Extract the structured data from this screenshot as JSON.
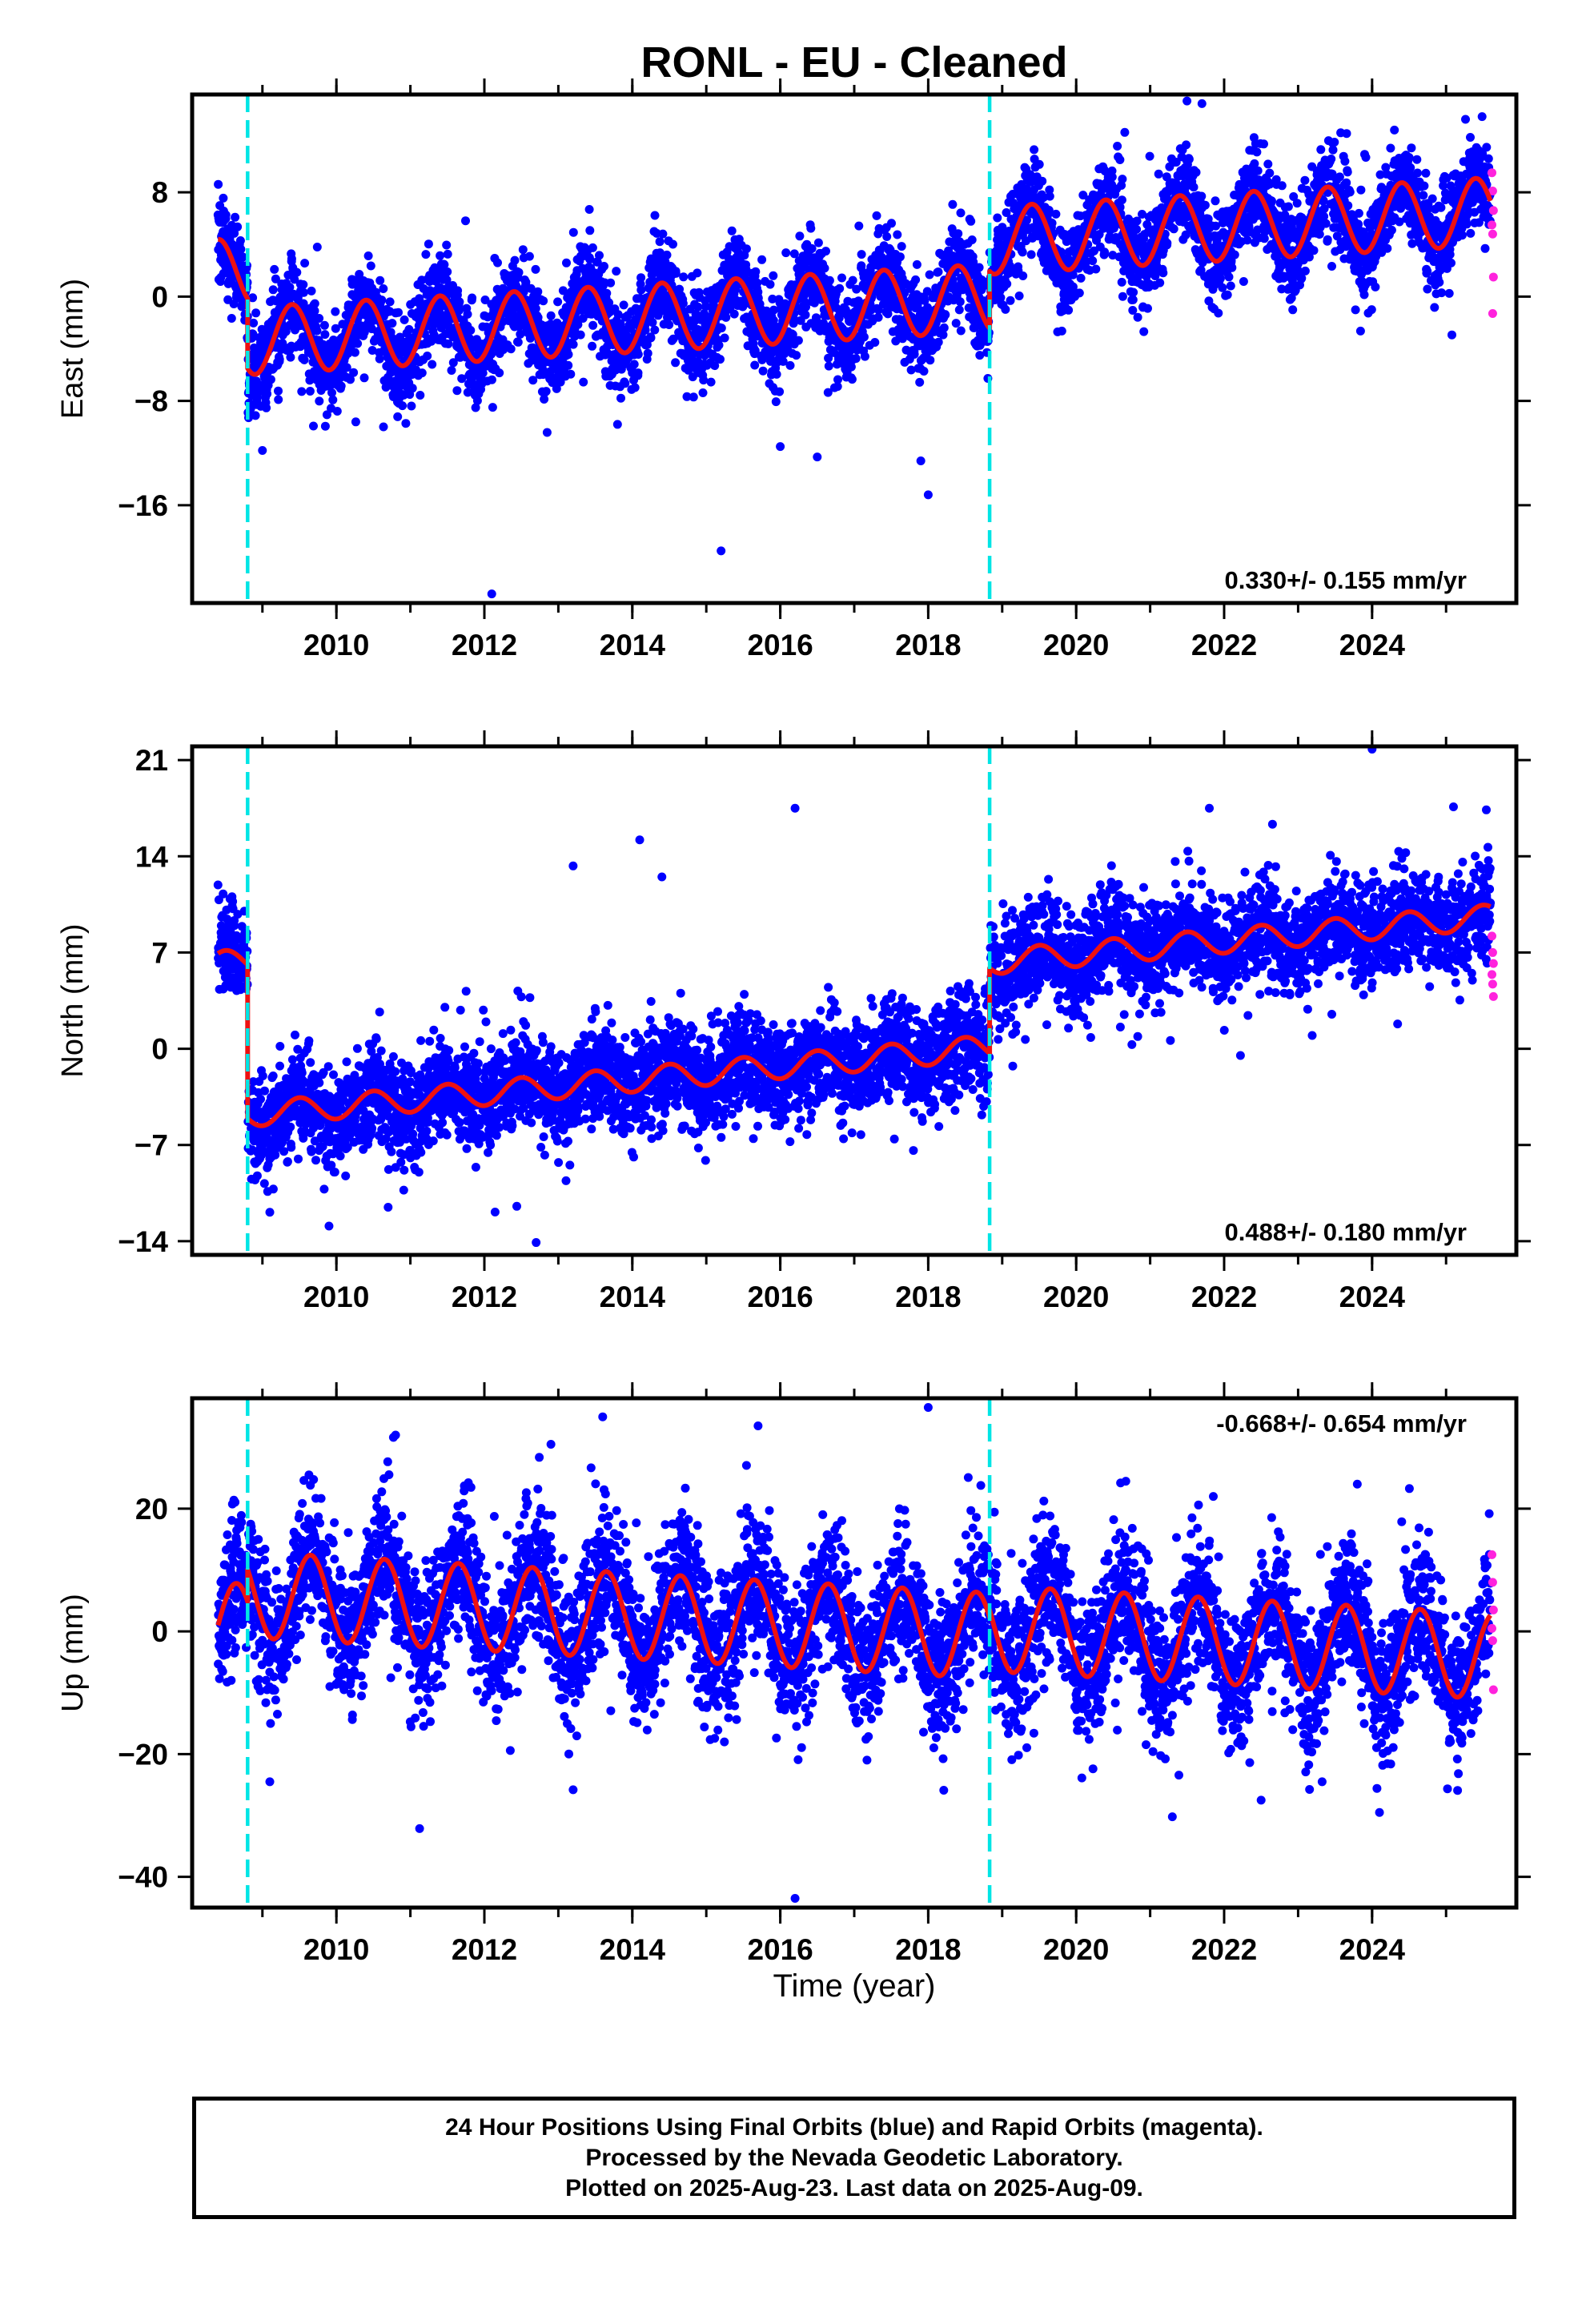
{
  "colors": {
    "final": "#0000ff",
    "rapid": "#ff22dd",
    "model": "#ee1111",
    "event": "#00e5e5",
    "frame": "#000000"
  },
  "info": {
    "line1": "24 Hour Positions Using Final Orbits (blue) and Rapid Orbits (magenta).",
    "line2": "Processed by the Nevada Geodetic Laboratory.",
    "line3": "Plotted on 2025-Aug-23. Last data on 2025-Aug-09."
  },
  "chart_data": [
    {
      "type": "scatter",
      "title": "RONL  - EU - Cleaned",
      "ylabel": "East (mm)",
      "xlabel": "",
      "xlim": [
        2008.05,
        2025.95
      ],
      "ylim": [
        -23.5,
        15.5
      ],
      "xticks": [
        2010,
        2012,
        2014,
        2016,
        2018,
        2020,
        2022,
        2024
      ],
      "yticks": [
        8,
        0,
        -8,
        -16
      ],
      "grid": false,
      "event_lines": [
        2008.8,
        2018.83
      ],
      "rate_label": "0.330+/- 0.155 mm/yr",
      "rate_position": "bottom-right",
      "data_start": 2008.4,
      "data_end": 2025.6,
      "model": {
        "trend_mm_per_yr": 0.33,
        "segment_offsets": [
          {
            "from": 2008.4,
            "to": 2008.8,
            "value_at_start": 1.8
          },
          {
            "from": 2008.8,
            "to": 2018.83,
            "value_at_start": -3.4
          },
          {
            "from": 2018.83,
            "to": 2025.6,
            "value_at_start": 4.3
          }
        ],
        "annual_amplitude": 2.6,
        "annual_peak": 2008.4
      },
      "scatter_spread": 1.7,
      "outliers": [
        [
          2012.1,
          -22.8
        ],
        [
          2015.2,
          -19.5
        ],
        [
          2018.0,
          -15.2
        ],
        [
          2017.9,
          -12.6
        ],
        [
          2009.0,
          -11.8
        ],
        [
          2016.0,
          -11.5
        ],
        [
          2016.5,
          -12.3
        ],
        [
          2021.7,
          14.8
        ],
        [
          2013.8,
          -9.8
        ]
      ],
      "rapid_points": [
        [
          2025.62,
          9.5
        ],
        [
          2025.63,
          8.1
        ],
        [
          2025.64,
          6.6
        ],
        [
          2025.62,
          5.5
        ],
        [
          2025.63,
          4.8
        ],
        [
          2025.64,
          1.5
        ],
        [
          2025.63,
          -1.3
        ]
      ]
    },
    {
      "type": "scatter",
      "title": "",
      "ylabel": "North (mm)",
      "xlabel": "",
      "xlim": [
        2008.05,
        2025.95
      ],
      "ylim": [
        -15,
        22
      ],
      "xticks": [
        2010,
        2012,
        2014,
        2016,
        2018,
        2020,
        2022,
        2024
      ],
      "yticks": [
        21,
        14,
        7,
        0,
        -7,
        -14
      ],
      "grid": false,
      "event_lines": [
        2008.8,
        2018.83
      ],
      "rate_label": "0.488+/- 0.180 mm/yr",
      "rate_position": "bottom-right",
      "data_start": 2008.4,
      "data_end": 2025.6,
      "model": {
        "trend_mm_per_yr": 0.488,
        "segment_offsets": [
          {
            "from": 2008.4,
            "to": 2008.8,
            "value_at_start": 6.2
          },
          {
            "from": 2008.8,
            "to": 2018.83,
            "value_at_start": -4.8
          },
          {
            "from": 2018.83,
            "to": 2025.6,
            "value_at_start": 6.3
          }
        ],
        "annual_amplitude": 0.9,
        "annual_peak": 2008.5
      },
      "scatter_spread": 1.8,
      "outliers": [
        [
          2016.2,
          17.5
        ],
        [
          2013.2,
          13.3
        ],
        [
          2014.1,
          15.2
        ],
        [
          2012.7,
          -14.1
        ],
        [
          2009.9,
          -12.9
        ],
        [
          2009.1,
          -11.9
        ],
        [
          2024.0,
          21.8
        ],
        [
          2021.8,
          17.5
        ],
        [
          2025.1,
          17.6
        ],
        [
          2014.4,
          12.5
        ],
        [
          2017.8,
          -7.4
        ]
      ],
      "rapid_points": [
        [
          2025.62,
          8.2
        ],
        [
          2025.63,
          7.0
        ],
        [
          2025.64,
          6.2
        ],
        [
          2025.62,
          5.4
        ],
        [
          2025.63,
          4.7
        ],
        [
          2025.64,
          3.8
        ]
      ]
    },
    {
      "type": "scatter",
      "title": "",
      "ylabel": "Up (mm)",
      "xlabel": "Time (year)",
      "xlim": [
        2008.05,
        2025.95
      ],
      "ylim": [
        -45,
        38
      ],
      "xticks": [
        2010,
        2012,
        2014,
        2016,
        2018,
        2020,
        2022,
        2024
      ],
      "yticks": [
        20,
        0,
        -20,
        -40
      ],
      "grid": false,
      "event_lines": [
        2008.8,
        2018.83
      ],
      "rate_label": "-0.668+/- 0.654 mm/yr",
      "rate_position": "top-right",
      "data_start": 2008.4,
      "data_end": 2025.6,
      "model": {
        "trend_mm_per_yr": -0.668,
        "segment_offsets": [
          {
            "from": 2008.4,
            "to": 2008.8,
            "value_at_start": 1.0
          },
          {
            "from": 2008.8,
            "to": 2018.83,
            "value_at_start": 6.0
          },
          {
            "from": 2018.83,
            "to": 2025.6,
            "value_at_start": 0.5
          }
        ],
        "annual_amplitude": 7.0,
        "annual_peak": 2008.65
      },
      "scatter_spread": 5.5,
      "outliers": [
        [
          2018.0,
          36.5
        ],
        [
          2016.2,
          -43.5
        ],
        [
          2010.8,
          32.0
        ],
        [
          2015.7,
          33.5
        ],
        [
          2013.2,
          -25.8
        ],
        [
          2012.9,
          30.5
        ],
        [
          2021.3,
          -30.2
        ],
        [
          2024.1,
          -29.5
        ],
        [
          2009.1,
          -24.5
        ],
        [
          2022.5,
          -27.5
        ],
        [
          2023.8,
          24.0
        ],
        [
          2020.6,
          24.2
        ]
      ],
      "rapid_points": [
        [
          2025.62,
          12.5
        ],
        [
          2025.63,
          8.0
        ],
        [
          2025.64,
          3.5
        ],
        [
          2025.62,
          0.5
        ],
        [
          2025.63,
          -1.5
        ],
        [
          2025.64,
          -9.5
        ]
      ]
    }
  ]
}
